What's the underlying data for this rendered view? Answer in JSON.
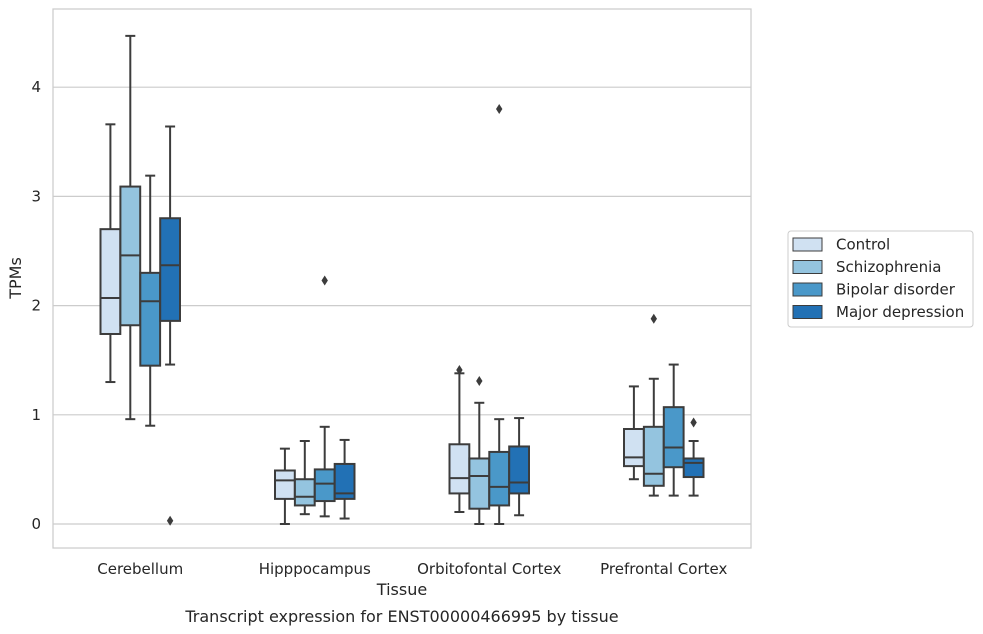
{
  "chart_data": {
    "type": "box",
    "title": "",
    "caption": "Transcript expression for ENST00000466995 by tissue",
    "xlabel": "Tissue",
    "ylabel": "TPMs",
    "ylim": [
      -0.22,
      4.72
    ],
    "yticks": [
      0,
      1,
      2,
      3,
      4
    ],
    "grid": "horizontal",
    "legend_position": "right",
    "categories": [
      "Cerebellum",
      "Hipppocampus",
      "Orbitofontal Cortex",
      "Prefrontal Cortex"
    ],
    "series": [
      {
        "name": "Control",
        "color": "#d0e1f2",
        "boxes": [
          {
            "whisker_low": 1.3,
            "q1": 1.74,
            "median": 2.07,
            "q3": 2.7,
            "whisker_high": 3.66,
            "outliers": []
          },
          {
            "whisker_low": 0.0,
            "q1": 0.23,
            "median": 0.4,
            "q3": 0.49,
            "whisker_high": 0.69,
            "outliers": []
          },
          {
            "whisker_low": 0.11,
            "q1": 0.28,
            "median": 0.42,
            "q3": 0.73,
            "whisker_high": 1.38,
            "outliers": [
              1.41
            ]
          },
          {
            "whisker_low": 0.41,
            "q1": 0.53,
            "median": 0.61,
            "q3": 0.87,
            "whisker_high": 1.26,
            "outliers": []
          }
        ]
      },
      {
        "name": "Schizophrenia",
        "color": "#94c4df",
        "boxes": [
          {
            "whisker_low": 0.96,
            "q1": 1.82,
            "median": 2.46,
            "q3": 3.09,
            "whisker_high": 4.47,
            "outliers": []
          },
          {
            "whisker_low": 0.09,
            "q1": 0.17,
            "median": 0.25,
            "q3": 0.41,
            "whisker_high": 0.76,
            "outliers": []
          },
          {
            "whisker_low": 0.0,
            "q1": 0.14,
            "median": 0.44,
            "q3": 0.6,
            "whisker_high": 1.11,
            "outliers": [
              1.31
            ]
          },
          {
            "whisker_low": 0.26,
            "q1": 0.35,
            "median": 0.46,
            "q3": 0.89,
            "whisker_high": 1.33,
            "outliers": [
              1.88
            ]
          }
        ]
      },
      {
        "name": "Bipolar disorder",
        "color": "#4a98c9",
        "boxes": [
          {
            "whisker_low": 0.9,
            "q1": 1.45,
            "median": 2.04,
            "q3": 2.3,
            "whisker_high": 3.19,
            "outliers": []
          },
          {
            "whisker_low": 0.07,
            "q1": 0.21,
            "median": 0.37,
            "q3": 0.5,
            "whisker_high": 0.89,
            "outliers": [
              2.23
            ]
          },
          {
            "whisker_low": 0.0,
            "q1": 0.17,
            "median": 0.34,
            "q3": 0.66,
            "whisker_high": 0.96,
            "outliers": [
              3.8
            ]
          },
          {
            "whisker_low": 0.26,
            "q1": 0.52,
            "median": 0.7,
            "q3": 1.07,
            "whisker_high": 1.46,
            "outliers": []
          }
        ]
      },
      {
        "name": "Major depression",
        "color": "#2271b5",
        "boxes": [
          {
            "whisker_low": 1.46,
            "q1": 1.86,
            "median": 2.37,
            "q3": 2.8,
            "whisker_high": 3.64,
            "outliers": [
              0.03
            ]
          },
          {
            "whisker_low": 0.05,
            "q1": 0.23,
            "median": 0.28,
            "q3": 0.55,
            "whisker_high": 0.77,
            "outliers": []
          },
          {
            "whisker_low": 0.08,
            "q1": 0.28,
            "median": 0.38,
            "q3": 0.71,
            "whisker_high": 0.97,
            "outliers": []
          },
          {
            "whisker_low": 0.26,
            "q1": 0.43,
            "median": 0.56,
            "q3": 0.6,
            "whisker_high": 0.76,
            "outliers": [
              0.93
            ]
          }
        ]
      }
    ]
  }
}
